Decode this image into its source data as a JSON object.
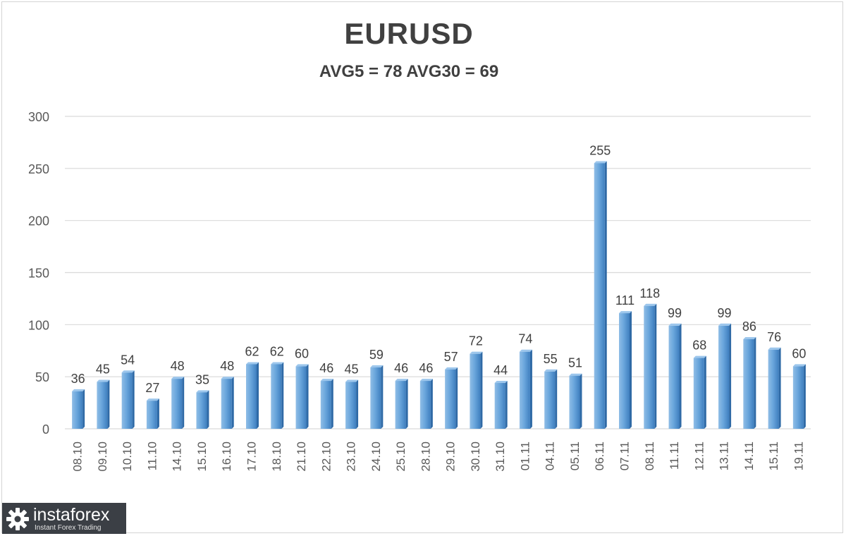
{
  "brand": {
    "name": "instaforex",
    "tagline": "Instant Forex Trading"
  },
  "chart_data": {
    "type": "bar",
    "title": "EURUSD",
    "subtitle": "AVG5 = 78 AVG30 = 69",
    "xlabel": "",
    "ylabel": "",
    "ylim": [
      0,
      300
    ],
    "yticks": [
      0,
      50,
      100,
      150,
      200,
      250,
      300
    ],
    "grid": true,
    "bar_color": "#5b9bd5",
    "categories": [
      "08.10",
      "09.10",
      "10.10",
      "11.10",
      "14.10",
      "15.10",
      "16.10",
      "17.10",
      "18.10",
      "21.10",
      "22.10",
      "23.10",
      "24.10",
      "25.10",
      "28.10",
      "29.10",
      "30.10",
      "31.10",
      "01.11",
      "04.11",
      "05.11",
      "06.11",
      "07.11",
      "08.11",
      "11.11",
      "12.11",
      "13.11",
      "14.11",
      "15.11",
      "19.11"
    ],
    "values": [
      36,
      45,
      54,
      27,
      48,
      35,
      48,
      62,
      62,
      60,
      46,
      45,
      59,
      46,
      46,
      57,
      72,
      44,
      74,
      55,
      51,
      255,
      111,
      118,
      99,
      68,
      99,
      86,
      76,
      60
    ],
    "data_labels": true
  }
}
